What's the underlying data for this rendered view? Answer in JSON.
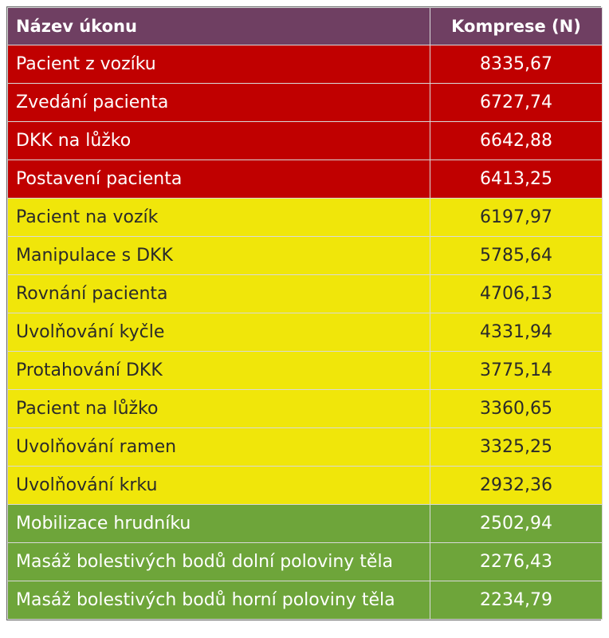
{
  "header": {
    "name": "Název úkonu",
    "value": "Komprese (N)"
  },
  "colors": {
    "header": "#6f3f62",
    "red": "#c00000",
    "yellow": "#f0e60a",
    "green": "#6ea53a"
  },
  "rows": [
    {
      "name": "Pacient z vozíku",
      "value": "8335,67",
      "level": "red"
    },
    {
      "name": "Zvedání pacienta",
      "value": "6727,74",
      "level": "red"
    },
    {
      "name": "DKK na lůžko",
      "value": "6642,88",
      "level": "red"
    },
    {
      "name": "Postavení pacienta",
      "value": "6413,25",
      "level": "red"
    },
    {
      "name": "Pacient na vozík",
      "value": "6197,97",
      "level": "yellow"
    },
    {
      "name": "Manipulace s DKK",
      "value": "5785,64",
      "level": "yellow"
    },
    {
      "name": "Rovnání pacienta",
      "value": "4706,13",
      "level": "yellow"
    },
    {
      "name": "Uvolňování kyčle",
      "value": "4331,94",
      "level": "yellow"
    },
    {
      "name": "Protahování DKK",
      "value": "3775,14",
      "level": "yellow"
    },
    {
      "name": "Pacient na lůžko",
      "value": "3360,65",
      "level": "yellow"
    },
    {
      "name": "Uvolňování ramen",
      "value": "3325,25",
      "level": "yellow"
    },
    {
      "name": "Uvolňování krku",
      "value": "2932,36",
      "level": "yellow"
    },
    {
      "name": "Mobilizace hrudníku",
      "value": "2502,94",
      "level": "green"
    },
    {
      "name": "Masáž bolestivých bodů dolní poloviny těla",
      "value": "2276,43",
      "level": "green"
    },
    {
      "name": "Masáž bolestivých bodů horní poloviny těla",
      "value": "2234,79",
      "level": "green"
    }
  ]
}
